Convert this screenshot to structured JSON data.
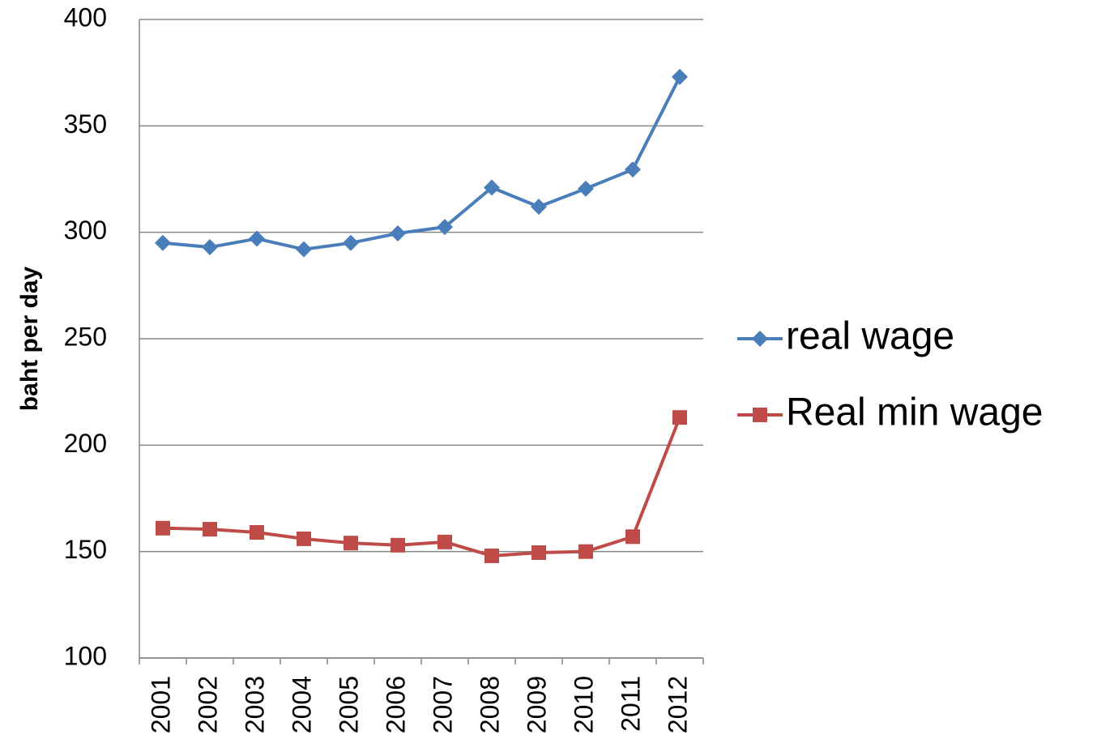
{
  "chart_data": {
    "type": "line",
    "y_label": "baht per day",
    "categories": [
      "2001",
      "2002",
      "2003",
      "2004",
      "2005",
      "2006",
      "2007",
      "2008",
      "2009",
      "2010",
      "2011",
      "2012"
    ],
    "series": [
      {
        "name": "real wage",
        "color": "#4a7ebb",
        "marker": "diamond",
        "values": [
          295,
          293,
          297,
          292,
          295,
          299.5,
          302.5,
          321,
          312,
          320.5,
          329.5,
          373
        ]
      },
      {
        "name": "Real min wage",
        "color": "#be4b48",
        "marker": "square",
        "values": [
          161,
          160.5,
          159,
          156,
          154,
          153,
          154.5,
          148,
          149.5,
          150,
          157,
          213
        ]
      }
    ],
    "ylim": [
      100,
      400
    ],
    "yticks": [
      100,
      150,
      200,
      250,
      300,
      350,
      400
    ],
    "grid": true,
    "legend": "right"
  }
}
